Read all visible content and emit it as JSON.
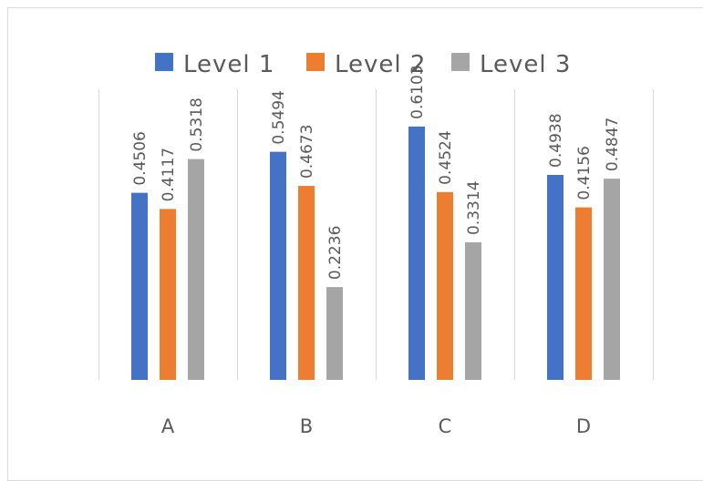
{
  "chart_data": {
    "type": "bar",
    "categories": [
      "A",
      "B",
      "C",
      "D"
    ],
    "series": [
      {
        "name": "Level 1",
        "color": "#4472c4",
        "values": [
          0.4506,
          0.5494,
          0.6103,
          0.4938
        ]
      },
      {
        "name": "Level 2",
        "color": "#ed7d31",
        "values": [
          0.4117,
          0.4673,
          0.4524,
          0.4156
        ]
      },
      {
        "name": "Level 3",
        "color": "#a5a5a5",
        "values": [
          0.5318,
          0.2236,
          0.3314,
          0.4847
        ]
      }
    ],
    "data_labels": [
      [
        "0.4506",
        "0.4117",
        "0.5318"
      ],
      [
        "0.5494",
        "0.4673",
        "0.2236"
      ],
      [
        "0.6103",
        "0.4524",
        "0.3314"
      ],
      [
        "0.4938",
        "0.4156",
        "0.4847"
      ]
    ],
    "title": "",
    "xlabel": "",
    "ylabel": "",
    "ylim": [
      0,
      0.7
    ],
    "grid": "vertical category separators",
    "legend_position": "top"
  }
}
